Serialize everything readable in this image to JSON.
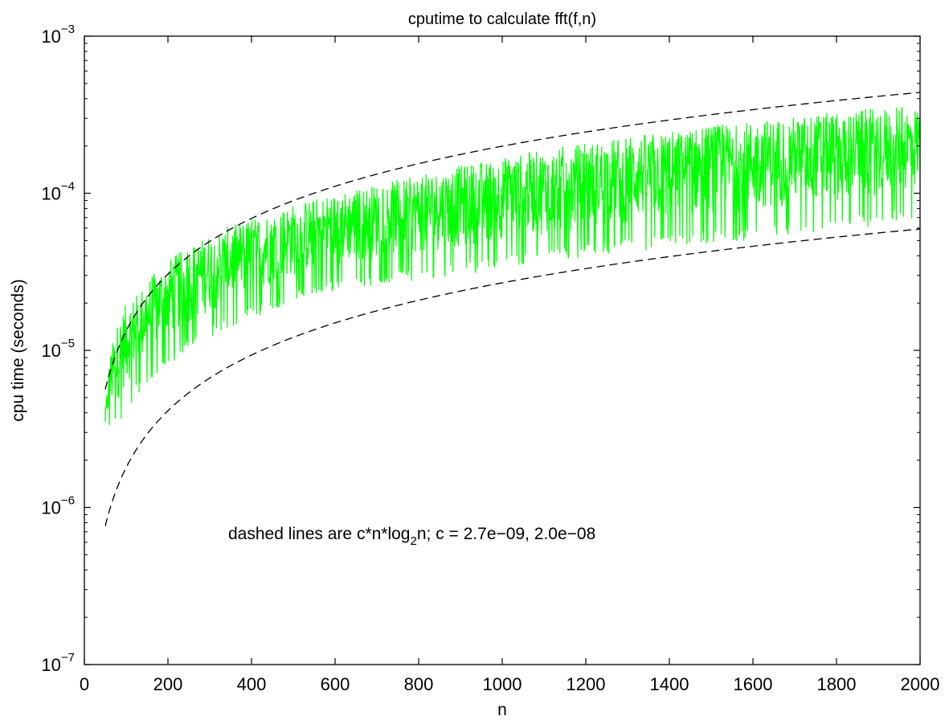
{
  "chart_data": {
    "type": "line",
    "title": "cputime to calculate fft(f,n)",
    "xlabel": "n",
    "ylabel": "cpu time (seconds)",
    "xlim": [
      0,
      2000
    ],
    "ylim": [
      1e-07,
      0.001
    ],
    "yscale": "log",
    "grid": false,
    "x_ticks": [
      "0",
      "200",
      "400",
      "600",
      "800",
      "1000",
      "1200",
      "1400",
      "1600",
      "1800",
      "2000"
    ],
    "y_ticks": [
      {
        "base": "10",
        "exp": "−7",
        "value": 1e-07
      },
      {
        "base": "10",
        "exp": "−6",
        "value": 1e-06
      },
      {
        "base": "10",
        "exp": "−5",
        "value": 1e-05
      },
      {
        "base": "10",
        "exp": "−4",
        "value": 0.0001
      },
      {
        "base": "10",
        "exp": "−3",
        "value": 0.001
      }
    ],
    "annotation": {
      "prefix": "dashed lines are  c*n*log",
      "subscript": "2",
      "suffix": "n;  c = 2.7e−09, 2.0e−08"
    },
    "colors": {
      "measured": "#00ff00",
      "bounds": "#000000"
    },
    "series": [
      {
        "style": "solid",
        "x_range": [
          50,
          2000
        ],
        "x": [
          50,
          60,
          70,
          80,
          100,
          120,
          150,
          200,
          250,
          300,
          400,
          500,
          600,
          700,
          800,
          900,
          1000,
          1100,
          1200,
          1300,
          1400,
          1500,
          1600,
          1700,
          1800,
          1900,
          2000
        ],
        "min_envelope": [
          3e-06,
          3e-06,
          3.1e-06,
          3.3e-06,
          4e-06,
          5e-06,
          6e-06,
          8e-06,
          1e-05,
          1.2e-05,
          1.6e-05,
          2e-05,
          2.4e-05,
          2.6e-05,
          2.8e-05,
          3e-05,
          3.3e-05,
          3.6e-05,
          3.9e-05,
          4.2e-05,
          4.5e-05,
          4.8e-05,
          5e-05,
          5.4e-05,
          5.8e-05,
          6.2e-05,
          6.8e-05
        ],
        "max_envelope": [
          4e-06,
          9e-06,
          1.2e-05,
          1.5e-05,
          2e-05,
          2.2e-05,
          2.8e-05,
          3.8e-05,
          4.6e-05,
          5.5e-05,
          7e-05,
          8.6e-05,
          0.0001,
          0.000115,
          0.00013,
          0.00015,
          0.00017,
          0.00019,
          0.00021,
          0.00023,
          0.00025,
          0.00027,
          0.00029,
          0.00031,
          0.00033,
          0.00035,
          0.00036
        ]
      },
      {
        "style": "dashed",
        "c": 2e-08,
        "formula": "c*n*log2(n)",
        "x_range": [
          50,
          2000
        ]
      },
      {
        "style": "dashed",
        "c": 2.7e-09,
        "formula": "c*n*log2(n)",
        "x_range": [
          50,
          2000
        ]
      }
    ]
  }
}
